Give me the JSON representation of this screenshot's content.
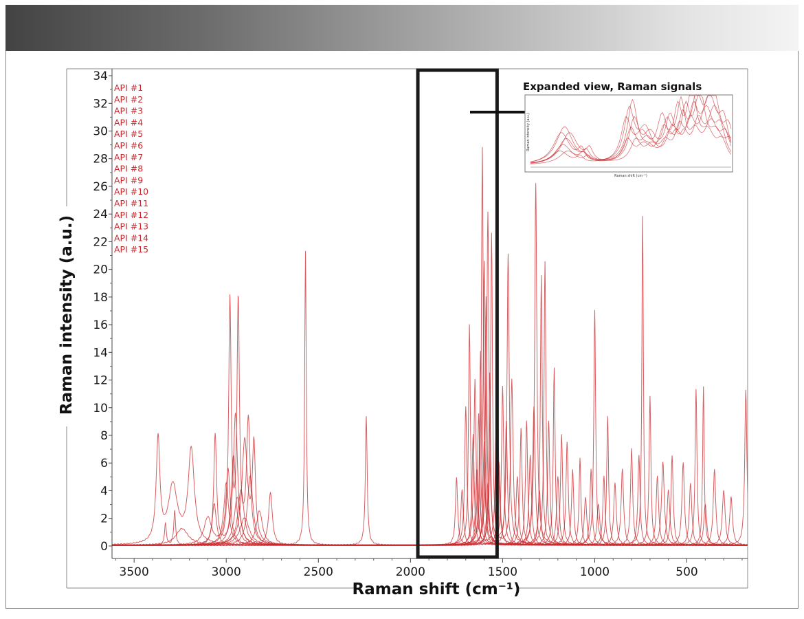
{
  "chart_data": {
    "type": "line",
    "title": "",
    "xlabel": "Raman shift (cm⁻¹)",
    "ylabel": "Raman intensity (a.u.)",
    "xlim": [
      3620,
      170
    ],
    "ylim": [
      -0.9,
      34.5
    ],
    "x_reversed": true,
    "x_ticks": [
      3500,
      3000,
      2500,
      2000,
      1500,
      1000,
      500
    ],
    "y_ticks": [
      0,
      2,
      4,
      6,
      8,
      10,
      12,
      14,
      16,
      18,
      20,
      22,
      24,
      26,
      28,
      30,
      32,
      34
    ],
    "legend_position": "top-left",
    "grid": false,
    "line_color": "#c8282c",
    "series": [
      {
        "name": "API #1",
        "peaks": [
          [
            3370,
            7.5,
            12
          ],
          [
            3290,
            4.2,
            30
          ],
          [
            3190,
            6.8,
            20
          ],
          [
            1610,
            28.8,
            6
          ],
          [
            1320,
            26.2,
            7
          ],
          [
            740,
            23.8,
            5
          ],
          [
            1000,
            17.0,
            6
          ],
          [
            300,
            4.0,
            9
          ]
        ]
      },
      {
        "name": "API #2",
        "peaks": [
          [
            2980,
            17.5,
            8
          ],
          [
            2935,
            17.3,
            8
          ],
          [
            2880,
            9.0,
            12
          ],
          [
            1580,
            24.0,
            7
          ],
          [
            1470,
            21.0,
            7
          ],
          [
            1270,
            20.5,
            6
          ],
          [
            630,
            6.0,
            9
          ]
        ]
      },
      {
        "name": "API #3",
        "peaks": [
          [
            2570,
            21.3,
            5
          ],
          [
            2240,
            9.3,
            6
          ],
          [
            1560,
            22.5,
            6
          ],
          [
            1450,
            12.0,
            8
          ],
          [
            1220,
            12.8,
            6
          ],
          [
            700,
            10.8,
            6
          ]
        ]
      },
      {
        "name": "API #4",
        "peaks": [
          [
            3060,
            8.0,
            9
          ],
          [
            2950,
            9.5,
            14
          ],
          [
            1680,
            15.8,
            6
          ],
          [
            1600,
            20.5,
            7
          ],
          [
            1290,
            19.5,
            6
          ],
          [
            930,
            9.3,
            6
          ],
          [
            450,
            11.3,
            6
          ]
        ]
      },
      {
        "name": "API #5",
        "peaks": [
          [
            2900,
            7.5,
            18
          ],
          [
            2850,
            7.0,
            10
          ],
          [
            1650,
            12.0,
            7
          ],
          [
            1530,
            15.5,
            7
          ],
          [
            1180,
            8.0,
            7
          ],
          [
            410,
            11.5,
            5
          ],
          [
            180,
            11.2,
            7
          ]
        ]
      },
      {
        "name": "API #6",
        "peaks": [
          [
            2960,
            6.5,
            15
          ],
          [
            1750,
            4.9,
            7
          ],
          [
            1620,
            14.0,
            6
          ],
          [
            1370,
            9.0,
            7
          ],
          [
            1080,
            6.3,
            6
          ],
          [
            580,
            6.5,
            7
          ]
        ]
      },
      {
        "name": "API #7",
        "peaks": [
          [
            3100,
            2.0,
            25
          ],
          [
            2990,
            5.5,
            14
          ],
          [
            1590,
            18.0,
            6
          ],
          [
            1330,
            10.0,
            8
          ],
          [
            800,
            7.0,
            7
          ],
          [
            520,
            6.0,
            8
          ]
        ]
      },
      {
        "name": "API #8",
        "peaks": [
          [
            3240,
            1.2,
            40
          ],
          [
            2920,
            4.0,
            20
          ],
          [
            1700,
            10.0,
            7
          ],
          [
            1500,
            11.5,
            7
          ],
          [
            1150,
            7.5,
            7
          ],
          [
            850,
            5.5,
            8
          ]
        ]
      },
      {
        "name": "API #9",
        "peaks": [
          [
            2870,
            5.0,
            18
          ],
          [
            1630,
            9.5,
            7
          ],
          [
            1400,
            8.5,
            7
          ],
          [
            1020,
            5.5,
            7
          ],
          [
            660,
            5.0,
            8
          ]
        ]
      },
      {
        "name": "API #10",
        "peaks": [
          [
            3000,
            4.5,
            16
          ],
          [
            2760,
            3.8,
            12
          ],
          [
            1570,
            12.5,
            6
          ],
          [
            1250,
            9.0,
            7
          ],
          [
            950,
            5.0,
            7
          ],
          [
            350,
            5.5,
            8
          ]
        ]
      },
      {
        "name": "API #11",
        "peaks": [
          [
            2940,
            3.5,
            20
          ],
          [
            1660,
            8.0,
            7
          ],
          [
            1480,
            9.0,
            7
          ],
          [
            1120,
            5.5,
            7
          ],
          [
            760,
            6.5,
            7
          ]
        ]
      },
      {
        "name": "API #12",
        "peaks": [
          [
            3065,
            3.0,
            14
          ],
          [
            1600,
            7.5,
            7
          ],
          [
            1350,
            6.5,
            8
          ],
          [
            890,
            4.5,
            8
          ],
          [
            480,
            4.5,
            8
          ]
        ]
      },
      {
        "name": "API #13",
        "peaks": [
          [
            2820,
            2.5,
            20
          ],
          [
            1720,
            4.0,
            8
          ],
          [
            1520,
            6.0,
            8
          ],
          [
            1200,
            5.0,
            8
          ],
          [
            600,
            4.0,
            9
          ]
        ]
      },
      {
        "name": "API #14",
        "peaks": [
          [
            2900,
            2.0,
            30
          ],
          [
            1640,
            5.5,
            8
          ],
          [
            1420,
            5.0,
            8
          ],
          [
            1050,
            3.5,
            8
          ],
          [
            260,
            3.5,
            9
          ]
        ]
      },
      {
        "name": "API #15",
        "peaks": [
          [
            3330,
            1.6,
            6
          ],
          [
            3280,
            2.5,
            6
          ],
          [
            1580,
            4.5,
            8
          ],
          [
            1300,
            4.0,
            8
          ],
          [
            980,
            3.0,
            9
          ],
          [
            400,
            3.0,
            9
          ]
        ]
      }
    ],
    "highlight_box": {
      "x_range": [
        1960,
        1530
      ],
      "y_range": [
        -0.9,
        34.5
      ]
    },
    "inset": {
      "title": "Expanded view, Raman signals",
      "xlabel": "Raman shift (cm⁻¹)",
      "ylabel": "Raman intensity (a.u.)"
    }
  }
}
